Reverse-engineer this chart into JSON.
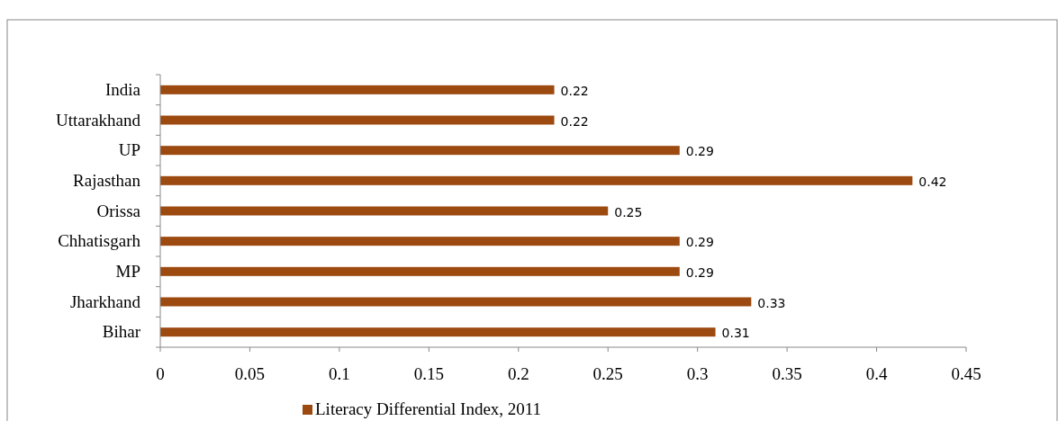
{
  "chart_data": {
    "type": "bar",
    "orientation": "horizontal",
    "categories": [
      "India",
      "Uttarakhand",
      "UP",
      "Rajasthan",
      "Orissa",
      "Chhatisgarh",
      "MP",
      "Jharkhand",
      "Bihar"
    ],
    "series": [
      {
        "name": "Literacy Differential Index, 2011",
        "color": "#9c4a10",
        "values": [
          0.22,
          0.22,
          0.29,
          0.42,
          0.25,
          0.29,
          0.29,
          0.33,
          0.31
        ]
      }
    ],
    "xlim": [
      0,
      0.45
    ],
    "xticks": [
      0,
      0.05,
      0.1,
      0.15,
      0.2,
      0.25,
      0.3,
      0.35,
      0.4,
      0.45
    ],
    "data_labels": true,
    "legend": "bottom",
    "grid": false
  }
}
